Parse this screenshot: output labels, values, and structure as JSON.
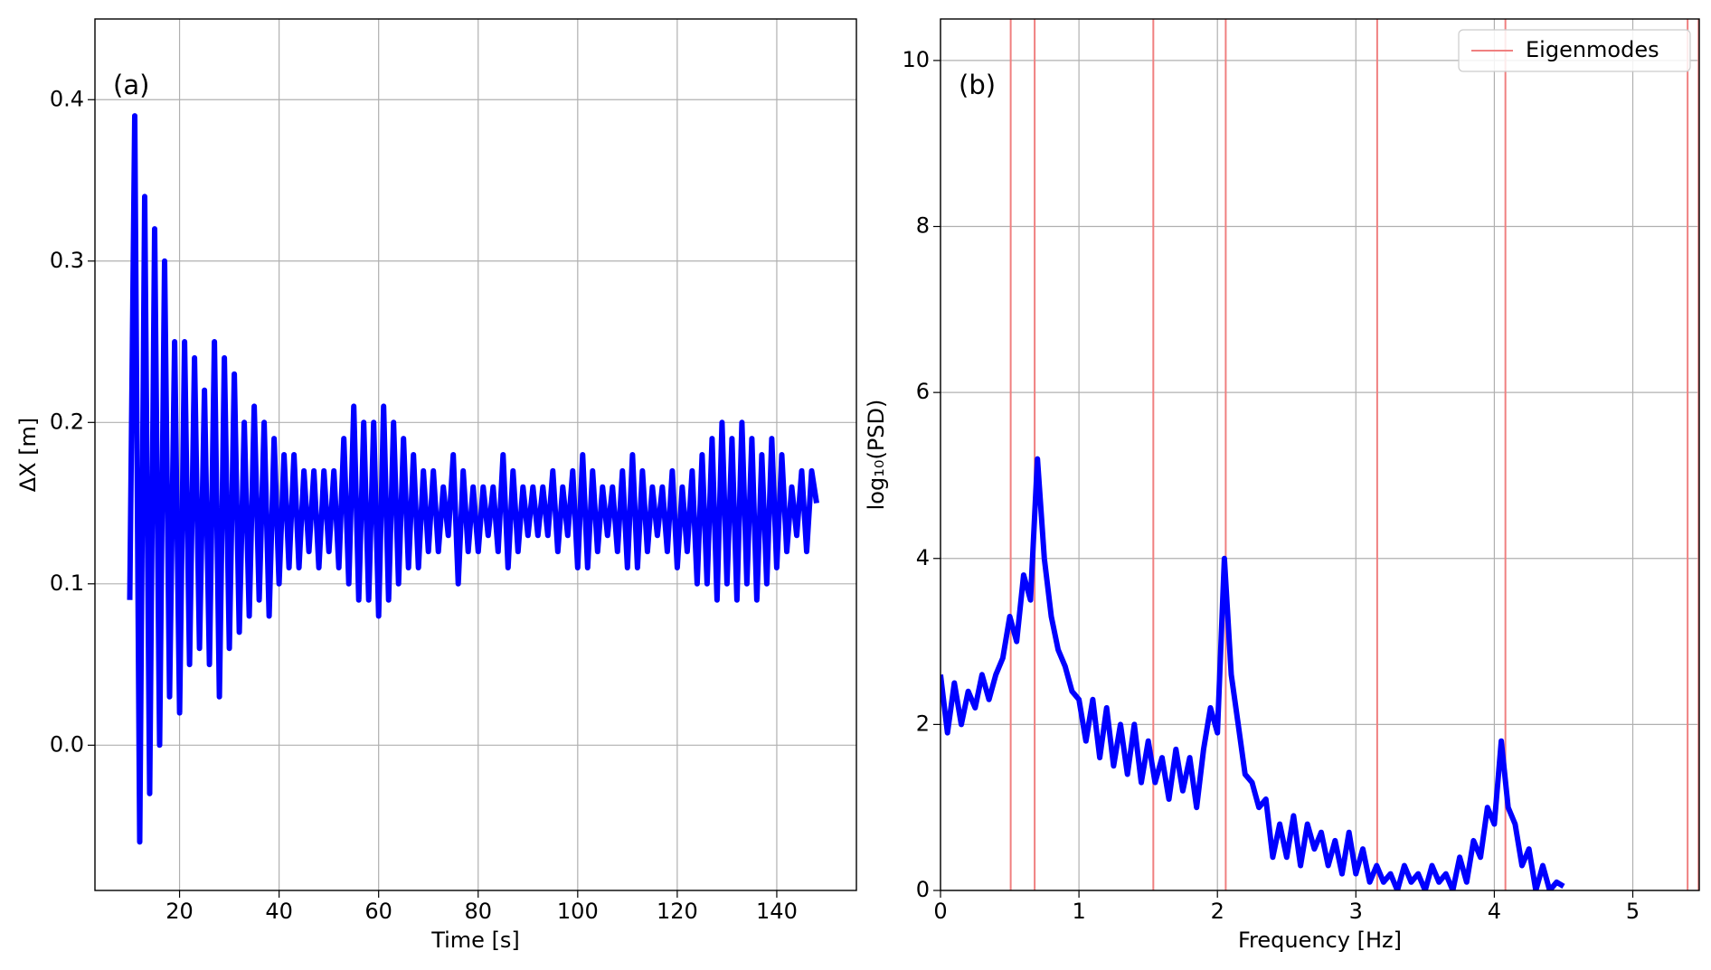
{
  "chart_data": [
    {
      "type": "line",
      "annotation": "(a)",
      "xlabel": "Time [s]",
      "ylabel": "ΔX [m]",
      "color": "#0000ff",
      "grid": true,
      "xlim": [
        3,
        156
      ],
      "ylim": [
        -0.09,
        0.45
      ],
      "xticks": [
        20,
        40,
        60,
        80,
        100,
        120,
        140
      ],
      "yticks": [
        {
          "value": 0,
          "label": "0.0"
        },
        0.1,
        0.2,
        0.3,
        0.4
      ],
      "x": [
        10,
        11,
        12,
        13,
        14,
        15,
        16,
        17,
        18,
        19,
        20,
        21,
        22,
        23,
        24,
        25,
        26,
        27,
        28,
        29,
        30,
        31,
        32,
        33,
        34,
        35,
        36,
        37,
        38,
        39,
        40,
        41,
        42,
        43,
        44,
        45,
        46,
        47,
        48,
        49,
        50,
        51,
        52,
        53,
        54,
        55,
        56,
        57,
        58,
        59,
        60,
        61,
        62,
        63,
        64,
        65,
        66,
        67,
        68,
        69,
        70,
        71,
        72,
        73,
        74,
        75,
        76,
        77,
        78,
        79,
        80,
        81,
        82,
        83,
        84,
        85,
        86,
        87,
        88,
        89,
        90,
        91,
        92,
        93,
        94,
        95,
        96,
        97,
        98,
        99,
        100,
        101,
        102,
        103,
        104,
        105,
        106,
        107,
        108,
        109,
        110,
        111,
        112,
        113,
        114,
        115,
        116,
        117,
        118,
        119,
        120,
        121,
        122,
        123,
        124,
        125,
        126,
        127,
        128,
        129,
        130,
        131,
        132,
        133,
        134,
        135,
        136,
        137,
        138,
        139,
        140,
        141,
        142,
        143,
        144,
        145,
        146,
        147,
        148
      ],
      "values": [
        0.09,
        0.39,
        -0.06,
        0.34,
        -0.03,
        0.32,
        0.0,
        0.3,
        0.03,
        0.25,
        0.02,
        0.25,
        0.05,
        0.24,
        0.06,
        0.22,
        0.05,
        0.25,
        0.03,
        0.24,
        0.06,
        0.23,
        0.07,
        0.2,
        0.08,
        0.21,
        0.09,
        0.2,
        0.08,
        0.19,
        0.1,
        0.18,
        0.11,
        0.18,
        0.11,
        0.17,
        0.12,
        0.17,
        0.11,
        0.17,
        0.12,
        0.17,
        0.11,
        0.19,
        0.1,
        0.21,
        0.09,
        0.2,
        0.09,
        0.2,
        0.08,
        0.21,
        0.09,
        0.2,
        0.1,
        0.19,
        0.11,
        0.18,
        0.11,
        0.17,
        0.12,
        0.17,
        0.12,
        0.16,
        0.13,
        0.18,
        0.1,
        0.17,
        0.12,
        0.16,
        0.12,
        0.16,
        0.13,
        0.16,
        0.12,
        0.18,
        0.11,
        0.17,
        0.12,
        0.16,
        0.13,
        0.16,
        0.13,
        0.16,
        0.13,
        0.17,
        0.12,
        0.16,
        0.13,
        0.17,
        0.11,
        0.18,
        0.11,
        0.17,
        0.12,
        0.16,
        0.13,
        0.16,
        0.12,
        0.17,
        0.11,
        0.18,
        0.11,
        0.17,
        0.12,
        0.16,
        0.13,
        0.16,
        0.12,
        0.17,
        0.11,
        0.16,
        0.12,
        0.17,
        0.1,
        0.18,
        0.1,
        0.19,
        0.09,
        0.2,
        0.1,
        0.19,
        0.09,
        0.2,
        0.1,
        0.19,
        0.09,
        0.18,
        0.1,
        0.19,
        0.11,
        0.18,
        0.12,
        0.16,
        0.13,
        0.17,
        0.12,
        0.17,
        0.15
      ]
    },
    {
      "type": "line",
      "annotation": "(b)",
      "xlabel": "Frequency [Hz]",
      "ylabel": "log₁₀(PSD)",
      "color": "#0000ff",
      "grid": true,
      "xlim": [
        0,
        5.48
      ],
      "ylim": [
        0,
        10.5
      ],
      "xticks": [
        0,
        1,
        2,
        3,
        4,
        5
      ],
      "yticks": [
        0,
        2,
        4,
        6,
        8,
        10
      ],
      "x": [
        0,
        0.05,
        0.1,
        0.15,
        0.2,
        0.25,
        0.3,
        0.35,
        0.4,
        0.45,
        0.5,
        0.55,
        0.6,
        0.65,
        0.7,
        0.75,
        0.8,
        0.85,
        0.9,
        0.95,
        1.0,
        1.05,
        1.1,
        1.15,
        1.2,
        1.25,
        1.3,
        1.35,
        1.4,
        1.45,
        1.5,
        1.55,
        1.6,
        1.65,
        1.7,
        1.75,
        1.8,
        1.85,
        1.9,
        1.95,
        2.0,
        2.05,
        2.1,
        2.15,
        2.2,
        2.25,
        2.3,
        2.35,
        2.4,
        2.45,
        2.5,
        2.55,
        2.6,
        2.65,
        2.7,
        2.75,
        2.8,
        2.85,
        2.9,
        2.95,
        3.0,
        3.05,
        3.1,
        3.15,
        3.2,
        3.25,
        3.3,
        3.35,
        3.4,
        3.45,
        3.5,
        3.55,
        3.6,
        3.65,
        3.7,
        3.75,
        3.8,
        3.85,
        3.9,
        3.95,
        4.0,
        4.05,
        4.1,
        4.15,
        4.2,
        4.25,
        4.3,
        4.35,
        4.4,
        4.45,
        4.5
      ],
      "values": [
        2.6,
        1.9,
        2.5,
        2.0,
        2.4,
        2.2,
        2.6,
        2.3,
        2.6,
        2.8,
        3.3,
        3.0,
        3.8,
        3.5,
        5.2,
        4.0,
        3.3,
        2.9,
        2.7,
        2.4,
        2.3,
        1.8,
        2.3,
        1.6,
        2.2,
        1.5,
        2.0,
        1.4,
        2.0,
        1.3,
        1.8,
        1.3,
        1.6,
        1.1,
        1.7,
        1.2,
        1.6,
        1.0,
        1.7,
        2.2,
        1.9,
        4.0,
        2.6,
        2.0,
        1.4,
        1.3,
        1.0,
        1.1,
        0.4,
        0.8,
        0.4,
        0.9,
        0.3,
        0.8,
        0.5,
        0.7,
        0.3,
        0.6,
        0.2,
        0.7,
        0.2,
        0.5,
        0.1,
        0.3,
        0.1,
        0.2,
        0.0,
        0.3,
        0.1,
        0.2,
        0.0,
        0.3,
        0.1,
        0.2,
        0.0,
        0.4,
        0.1,
        0.6,
        0.4,
        1.0,
        0.8,
        1.8,
        1.0,
        0.8,
        0.3,
        0.5,
        0.0,
        0.3,
        0.0,
        0.1,
        0.05
      ],
      "vlines": {
        "name": "Eigenmodes",
        "color": "#f08080",
        "values": [
          0.507,
          0.68,
          1.537,
          2.06,
          3.154,
          4.08,
          5.396,
          5.475
        ]
      },
      "legend": "upper right"
    }
  ]
}
